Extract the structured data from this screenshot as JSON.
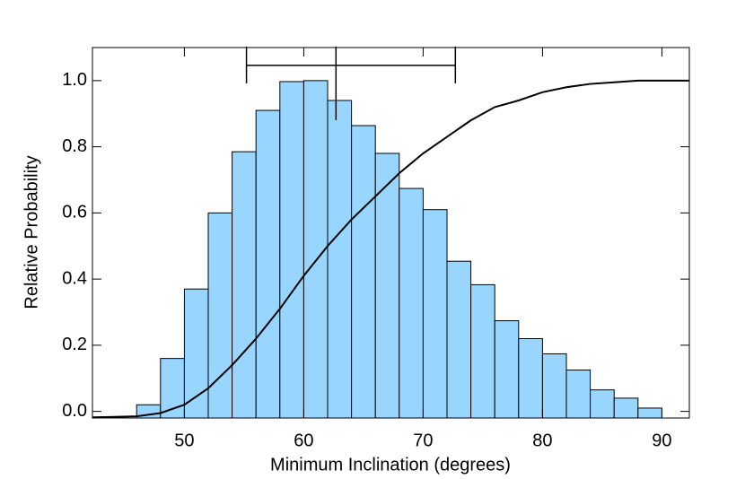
{
  "chart_data": {
    "type": "histogram",
    "xlabel": "Minimum Inclination (degrees)",
    "ylabel": "Relative Probability",
    "bins": [
      46,
      48,
      50,
      52,
      54,
      56,
      58,
      60,
      62,
      64,
      66,
      68,
      70,
      72,
      74,
      76,
      78,
      80,
      82,
      84,
      86,
      88,
      90
    ],
    "values": [
      0.02,
      0.16,
      0.37,
      0.6,
      0.785,
      0.91,
      0.997,
      1.0,
      0.94,
      0.864,
      0.78,
      0.674,
      0.61,
      0.454,
      0.383,
      0.274,
      0.22,
      0.174,
      0.125,
      0.065,
      0.04,
      0.01
    ],
    "color": "#99d6ff",
    "line": {
      "color": "#000000",
      "x": [
        42.3,
        46,
        48,
        50,
        52,
        54,
        56,
        58,
        60,
        62,
        64,
        66,
        68,
        70,
        72,
        74,
        76,
        78,
        80,
        82,
        84,
        86,
        88,
        92.3
      ],
      "y": [
        -0.018,
        -0.015,
        -0.005,
        0.02,
        0.07,
        0.14,
        0.22,
        0.31,
        0.41,
        0.5,
        0.58,
        0.65,
        0.72,
        0.78,
        0.83,
        0.88,
        0.92,
        0.94,
        0.965,
        0.98,
        0.99,
        0.995,
        1.0,
        1.0
      ]
    },
    "errorbar": {
      "center": 62.7,
      "low": 55.2,
      "high": 72.7,
      "y": 1.046
    },
    "xlim": [
      42.3,
      92.3
    ],
    "ylim": [
      -0.02,
      1.1
    ],
    "xticks": [
      50,
      60,
      70,
      80,
      90
    ],
    "yticks": [
      {
        "value": 0,
        "label": "0.0"
      },
      0.2,
      0.4,
      0.6,
      0.8,
      {
        "value": 1,
        "label": "1.0"
      }
    ]
  }
}
